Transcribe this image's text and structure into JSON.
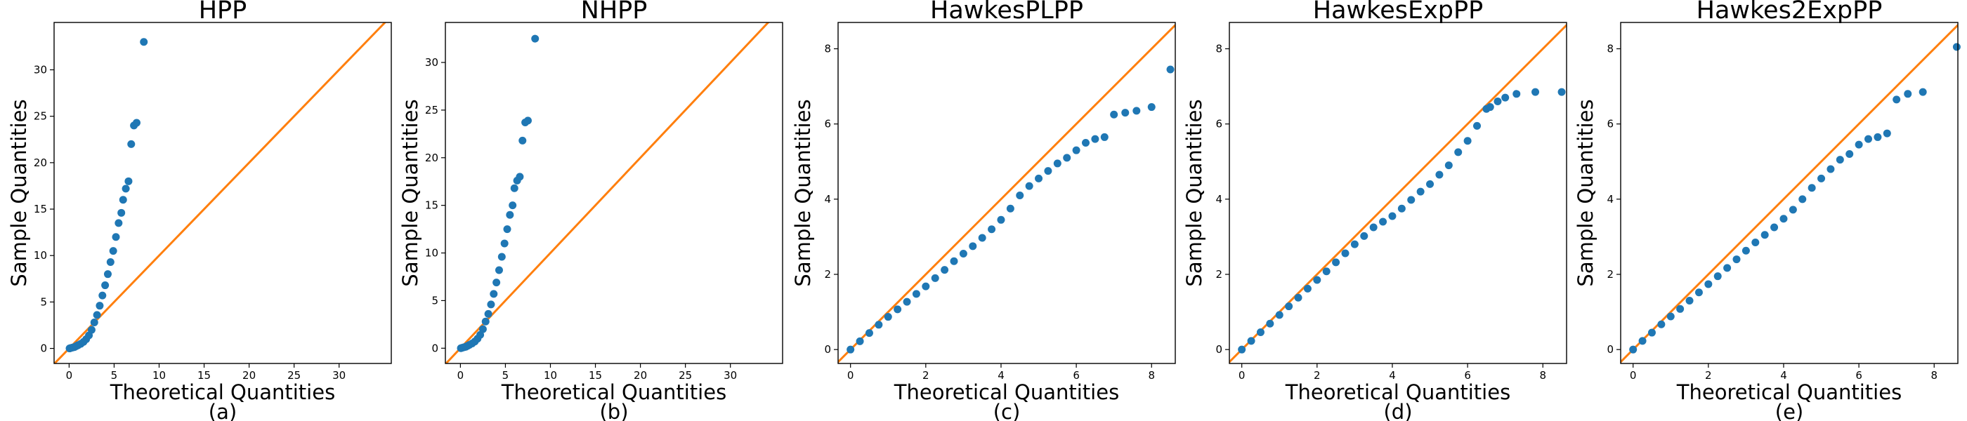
{
  "chart_data": [
    {
      "type": "scatter",
      "title": "HPP",
      "x_label": "Theoretical Quantities",
      "y_label": "Sample Quantities",
      "caption": "(a)",
      "color": "#1f77b4",
      "diagonal_color": "#ff7f0e",
      "x": [
        0.05,
        0.2,
        0.4,
        0.6,
        0.8,
        1.0,
        1.3,
        1.6,
        1.9,
        2.2,
        2.5,
        2.8,
        3.1,
        3.4,
        3.7,
        4.0,
        4.3,
        4.6,
        4.9,
        5.2,
        5.5,
        5.8,
        6.0,
        6.3,
        6.6,
        6.9,
        7.2,
        7.5,
        8.3
      ],
      "values": [
        0.0,
        0.05,
        0.1,
        0.15,
        0.25,
        0.35,
        0.5,
        0.7,
        1.0,
        1.4,
        2.0,
        2.8,
        3.6,
        4.6,
        5.7,
        6.8,
        8.0,
        9.3,
        10.5,
        12.0,
        13.5,
        14.6,
        16.0,
        17.2,
        18.0,
        22.0,
        24.0,
        24.3,
        33.0
      ],
      "xlim": [
        -1.67,
        35.8
      ],
      "ylim": [
        -1.62,
        35.1
      ],
      "xticks": [
        0,
        5,
        10,
        15,
        20,
        25,
        30
      ],
      "yticks": [
        0,
        5,
        10,
        15,
        20,
        25,
        30
      ]
    },
    {
      "type": "scatter",
      "title": "NHPP",
      "x_label": "Theoretical Quantities",
      "y_label": "Sample Quantities",
      "caption": "(b)",
      "color": "#1f77b4",
      "diagonal_color": "#ff7f0e",
      "x": [
        0.05,
        0.2,
        0.4,
        0.6,
        0.8,
        1.0,
        1.3,
        1.6,
        1.9,
        2.2,
        2.5,
        2.8,
        3.1,
        3.4,
        3.7,
        4.0,
        4.3,
        4.6,
        4.9,
        5.2,
        5.5,
        5.8,
        6.0,
        6.3,
        6.6,
        6.9,
        7.2,
        7.5,
        8.3
      ],
      "values": [
        0.0,
        0.05,
        0.1,
        0.15,
        0.25,
        0.35,
        0.5,
        0.7,
        1.0,
        1.4,
        2.0,
        2.8,
        3.6,
        4.6,
        5.7,
        6.9,
        8.2,
        9.6,
        11.0,
        12.5,
        14.0,
        15.0,
        16.8,
        17.6,
        18.0,
        21.8,
        23.7,
        23.9,
        32.5
      ],
      "xlim": [
        -1.67,
        35.8
      ],
      "ylim": [
        -1.6,
        34.2
      ],
      "xticks": [
        0,
        5,
        10,
        15,
        20,
        25,
        30
      ],
      "yticks": [
        0,
        5,
        10,
        15,
        20,
        25,
        30
      ]
    },
    {
      "type": "scatter",
      "title": "HawkesPLPP",
      "x_label": "Theoretical Quantities",
      "y_label": "Sample Quantities",
      "caption": "(c)",
      "color": "#1f77b4",
      "diagonal_color": "#ff7f0e",
      "x": [
        0,
        0.25,
        0.5,
        0.75,
        1,
        1.25,
        1.5,
        1.75,
        2,
        2.25,
        2.5,
        2.75,
        3,
        3.25,
        3.5,
        3.75,
        4,
        4.25,
        4.5,
        4.75,
        5,
        5.25,
        5.5,
        5.75,
        6,
        6.25,
        6.5,
        6.75,
        7.0,
        7.3,
        7.6,
        8.0,
        8.5
      ],
      "values": [
        0,
        0.22,
        0.44,
        0.66,
        0.87,
        1.07,
        1.27,
        1.48,
        1.68,
        1.9,
        2.12,
        2.35,
        2.55,
        2.75,
        2.97,
        3.2,
        3.45,
        3.75,
        4.1,
        4.35,
        4.55,
        4.75,
        4.95,
        5.1,
        5.3,
        5.5,
        5.6,
        5.65,
        6.25,
        6.3,
        6.35,
        6.45,
        7.45
      ],
      "xlim": [
        -0.33,
        8.63
      ],
      "ylim": [
        -0.37,
        8.7
      ],
      "xticks": [
        0,
        2,
        4,
        6,
        8
      ],
      "yticks": [
        0,
        2,
        4,
        6,
        8
      ]
    },
    {
      "type": "scatter",
      "title": "HawkesExpPP",
      "x_label": "Theoretical Quantities",
      "y_label": "Sample Quantities",
      "caption": "(d)",
      "color": "#1f77b4",
      "diagonal_color": "#ff7f0e",
      "x": [
        0,
        0.25,
        0.5,
        0.75,
        1,
        1.25,
        1.5,
        1.75,
        2,
        2.25,
        2.5,
        2.75,
        3,
        3.25,
        3.5,
        3.75,
        4,
        4.25,
        4.5,
        4.75,
        5,
        5.25,
        5.5,
        5.75,
        6,
        6.25,
        6.5,
        6.6,
        6.8,
        7.0,
        7.3,
        7.8,
        8.5
      ],
      "values": [
        0,
        0.23,
        0.46,
        0.69,
        0.92,
        1.15,
        1.38,
        1.62,
        1.85,
        2.08,
        2.32,
        2.56,
        2.8,
        3.02,
        3.25,
        3.4,
        3.55,
        3.75,
        3.98,
        4.2,
        4.4,
        4.65,
        4.9,
        5.25,
        5.55,
        5.95,
        6.4,
        6.45,
        6.6,
        6.7,
        6.8,
        6.85,
        6.85
      ],
      "xlim": [
        -0.33,
        8.63
      ],
      "ylim": [
        -0.37,
        8.7
      ],
      "xticks": [
        0,
        2,
        4,
        6,
        8
      ],
      "yticks": [
        0,
        2,
        4,
        6,
        8
      ]
    },
    {
      "type": "scatter",
      "title": "Hawkes2ExpPP",
      "x_label": "Theoretical Quantities",
      "y_label": "Sample Quantities",
      "caption": "(e)",
      "color": "#1f77b4",
      "diagonal_color": "#ff7f0e",
      "x": [
        0,
        0.25,
        0.5,
        0.75,
        1,
        1.25,
        1.5,
        1.75,
        2,
        2.25,
        2.5,
        2.75,
        3,
        3.25,
        3.5,
        3.75,
        4,
        4.25,
        4.5,
        4.75,
        5,
        5.25,
        5.5,
        5.75,
        6,
        6.25,
        6.5,
        6.75,
        7.0,
        7.3,
        7.7,
        8.6
      ],
      "values": [
        0,
        0.23,
        0.45,
        0.67,
        0.88,
        1.08,
        1.3,
        1.52,
        1.74,
        1.95,
        2.17,
        2.4,
        2.63,
        2.85,
        3.05,
        3.25,
        3.48,
        3.72,
        4.0,
        4.3,
        4.55,
        4.8,
        5.05,
        5.2,
        5.45,
        5.6,
        5.65,
        5.75,
        6.65,
        6.8,
        6.85,
        8.05
      ],
      "xlim": [
        -0.33,
        8.63
      ],
      "ylim": [
        -0.37,
        8.7
      ],
      "xticks": [
        0,
        2,
        4,
        6,
        8
      ],
      "yticks": [
        0,
        2,
        4,
        6,
        8
      ]
    }
  ]
}
